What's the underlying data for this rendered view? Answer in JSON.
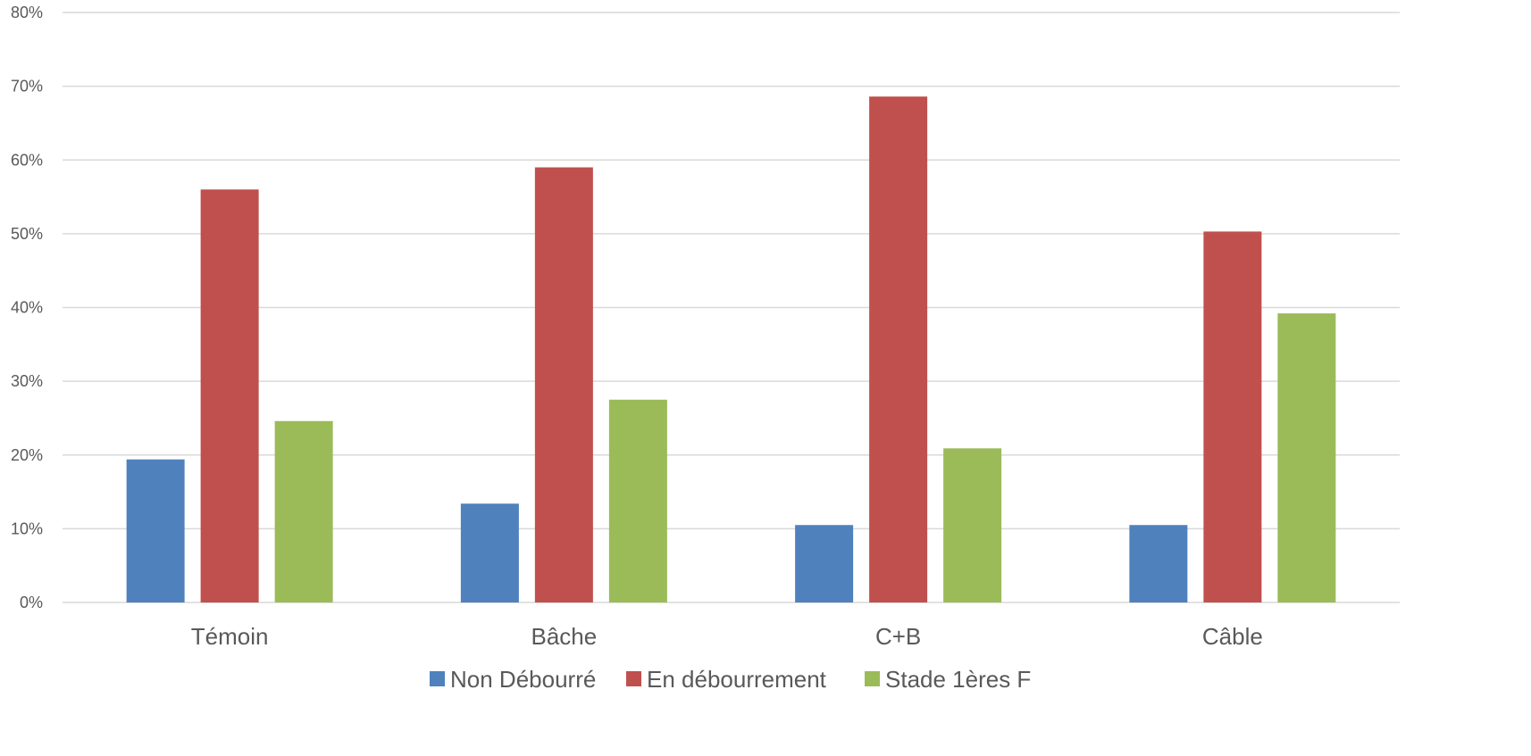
{
  "chart_data": {
    "type": "bar",
    "categories": [
      "Témoin",
      "Bâche",
      "C+B",
      "Câble"
    ],
    "series": [
      {
        "name": "Non Débourré",
        "color": "#4f81bd",
        "values": [
          0.194,
          0.134,
          0.105,
          0.105
        ]
      },
      {
        "name": "En débourrement",
        "color": "#c0504d",
        "values": [
          0.56,
          0.59,
          0.686,
          0.503
        ]
      },
      {
        "name": "Stade 1ères F",
        "color": "#9bbb59",
        "values": [
          0.246,
          0.275,
          0.209,
          0.392
        ]
      }
    ],
    "ylim": [
      0,
      0.8
    ],
    "yticks": [
      {
        "value": 0,
        "label": "0%"
      },
      {
        "value": 0.1,
        "label": "10%"
      },
      {
        "value": 0.2,
        "label": "20%"
      },
      {
        "value": 0.3,
        "label": "30%"
      },
      {
        "value": 0.4,
        "label": "40%"
      },
      {
        "value": 0.5,
        "label": "50%"
      },
      {
        "value": 0.6,
        "label": "60%"
      },
      {
        "value": 0.7,
        "label": "70%"
      },
      {
        "value": 0.8,
        "label": "80%"
      }
    ],
    "grid": true,
    "legend_position": "bottom",
    "title": "",
    "xlabel": "",
    "ylabel": ""
  }
}
